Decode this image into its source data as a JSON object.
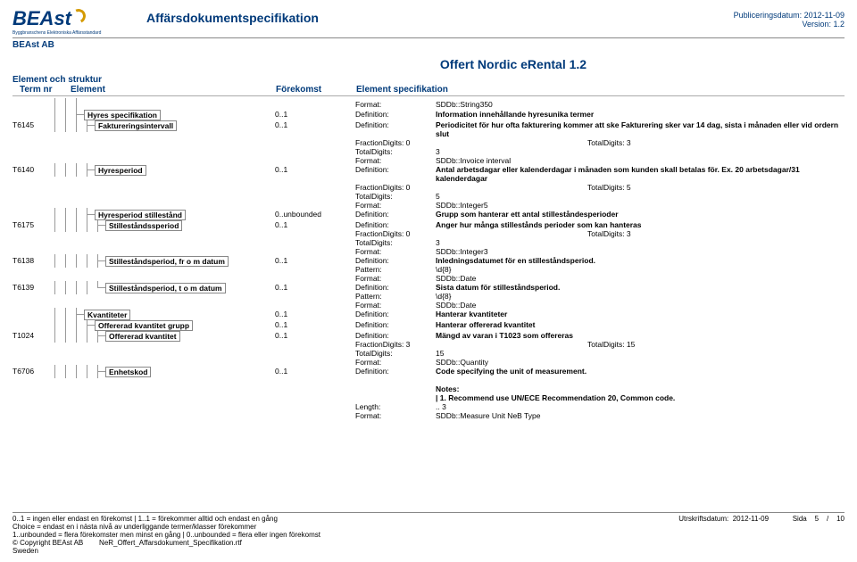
{
  "header": {
    "logo_text": "BEAst",
    "logo_sub": "Byggbranschens Elektroniska Affärsstandard",
    "doc_title": "Affärsdokumentspecifikation",
    "pub_label": "Publiceringsdatum:",
    "pub_date": "2012-11-09",
    "ver_label": "Version:",
    "ver": "1.2",
    "company": "BEAst AB"
  },
  "section_title": "Offert Nordic eRental 1.2",
  "struct_label": "Element och struktur",
  "columns": {
    "term": "Term nr",
    "element": "Element",
    "forek": "Förekomst",
    "spec": "Element specifikation"
  },
  "colors": {
    "brand": "#003a7a",
    "arc": "#d49a00",
    "border": "#888"
  },
  "rows": [
    {
      "term": "",
      "indent": [
        "v",
        "v",
        "v"
      ],
      "element": "",
      "forek": "",
      "noBox": true,
      "spec": [
        {
          "k": "Format:",
          "v": "SDDb::String350"
        }
      ]
    },
    {
      "term": "",
      "indent": [
        "v",
        "v",
        "m"
      ],
      "element": "Hyres specifikation",
      "forek": "0..1",
      "spec": [
        {
          "k": "Definition:",
          "v": "Information innehållande hyresunika termer",
          "b": true
        }
      ]
    },
    {
      "term": "T6145",
      "indent": [
        "v",
        "v",
        "v",
        "m"
      ],
      "element": "Faktureringsintervall",
      "forek": "0..1",
      "spec": [
        {
          "k": "Definition:",
          "v": "Periodicitet för hur ofta fakturering kommer att ske Fakturering sker var 14 dag, sista i månaden eller vid ordern slut",
          "b": true
        },
        {
          "frac": true,
          "a": "FractionDigits: 0",
          "b": "TotalDigits: 3"
        },
        {
          "k": "TotalDigits:",
          "v": "3"
        },
        {
          "k": "Format:",
          "v": "SDDb::Invoice interval"
        }
      ]
    },
    {
      "term": "T6140",
      "indent": [
        "v",
        "v",
        "v",
        "m"
      ],
      "element": "Hyresperiod",
      "forek": "0..1",
      "spec": [
        {
          "k": "Definition:",
          "v": "Antal arbetsdagar eller kalenderdagar i månaden som kunden skall betalas för. Ex. 20 arbetsdagar/31 kalenderdagar",
          "b": true
        },
        {
          "frac": true,
          "a": "FractionDigits: 0",
          "b": "TotalDigits: 5"
        },
        {
          "k": "TotalDigits:",
          "v": "5"
        },
        {
          "k": "Format:",
          "v": "SDDb::Integer5"
        }
      ]
    },
    {
      "term": "",
      "indent": [
        "v",
        "v",
        "v",
        "m"
      ],
      "element": "Hyresperiod stillestånd",
      "forek": "0..unbounded",
      "spec": [
        {
          "k": "Definition:",
          "v": "Grupp som hanterar ett antal  stilleståndesperioder",
          "b": true
        }
      ]
    },
    {
      "term": "T6175",
      "indent": [
        "v",
        "v",
        "v",
        "v",
        "m"
      ],
      "element": "Stilleståndssperiod",
      "forek": "0..1",
      "spec": [
        {
          "k": "Definition:",
          "v": "Anger hur många stillestånds perioder som kan hanteras",
          "b": true
        },
        {
          "frac": true,
          "a": "FractionDigits: 0",
          "b": "TotalDigits: 3"
        },
        {
          "k": "TotalDigits:",
          "v": "3"
        },
        {
          "k": "Format:",
          "v": "SDDb::Integer3"
        }
      ]
    },
    {
      "term": "T6138",
      "indent": [
        "v",
        "v",
        "v",
        "v",
        "m"
      ],
      "element": "Stilleståndsperiod, fr o m datum",
      "forek": "0..1",
      "spec": [
        {
          "k": "Definition:",
          "v": "Inledningsdatumet för en stilleståndsperiod.",
          "b": true
        },
        {
          "k": "Pattern:",
          "v": "\\d{8}"
        },
        {
          "k": "Format:",
          "v": "SDDb::Date"
        }
      ]
    },
    {
      "term": "T6139",
      "indent": [
        "v",
        "v",
        "v",
        "v",
        "t"
      ],
      "element": "Stilleståndsperiod, t o m datum",
      "forek": "0..1",
      "spec": [
        {
          "k": "Definition:",
          "v": "Sista datum för stilleståndsperiod.",
          "b": true
        },
        {
          "k": "Pattern:",
          "v": "\\d{8}"
        },
        {
          "k": "Format:",
          "v": "SDDb::Date"
        }
      ]
    },
    {
      "term": "",
      "indent": [
        "v",
        "v",
        "m"
      ],
      "element": "Kvantiteter",
      "forek": "0..1",
      "spec": [
        {
          "k": "Definition:",
          "v": "Hanterar kvantiteter",
          "b": true
        }
      ]
    },
    {
      "term": "",
      "indent": [
        "v",
        "v",
        "v",
        "m"
      ],
      "element": "Offererad kvantitet grupp",
      "forek": "0..1",
      "spec": [
        {
          "k": "Definition:",
          "v": "Hanterar offererad kvantitet",
          "b": true
        }
      ]
    },
    {
      "term": "T1024",
      "indent": [
        "v",
        "v",
        "v",
        "v",
        "m"
      ],
      "element": "Offererad kvantitet",
      "forek": "0..1",
      "spec": [
        {
          "k": "Definition:",
          "v": "Mängd av varan i T1023 som offereras",
          "b": true
        },
        {
          "frac": true,
          "a": "FractionDigits: 3",
          "b": "TotalDigits: 15"
        },
        {
          "k": "TotalDigits:",
          "v": "15"
        },
        {
          "k": "Format:",
          "v": "SDDb::Quantity"
        }
      ]
    },
    {
      "term": "T6706",
      "indent": [
        "v",
        "v",
        "v",
        "v",
        "m"
      ],
      "element": "Enhetskod",
      "forek": "0..1",
      "spec": [
        {
          "k": "Definition:",
          "v": "Code specifying the unit of measurement.",
          "b": true
        },
        {
          "blank": true
        },
        {
          "k": "",
          "v": "Notes:",
          "b": true
        },
        {
          "k": "",
          "v": "| 1. Recommend use UN/ECE Recommendation 20, Common code.",
          "b": true
        },
        {
          "k": "Length:",
          "v": ".. 3"
        },
        {
          "k": "Format:",
          "v": "SDDb::Measure Unit NeB Type"
        }
      ]
    }
  ],
  "footer": {
    "l1": "0..1 = ingen eller endast en förekomst | 1..1 = förekommer alltid och endast en gång",
    "l2": "Choice = endast en i nästa nivå av underliggande termer/klasser förekommer",
    "l3": "1..unbounded = flera förekomster men minst en gång | 0..unbounded = flera eller ingen förekomst",
    "l4a": "© Copyright BEAst AB",
    "l4b": "NeR_Offert_Affarsdokument_Specifikation.rtf",
    "l5": "Sweden",
    "r1a": "Utrskriftsdatum:",
    "r1b": "2012-11-09",
    "r2a": "Sida",
    "r2b": "5",
    "r2c": "/",
    "r2d": "10"
  }
}
